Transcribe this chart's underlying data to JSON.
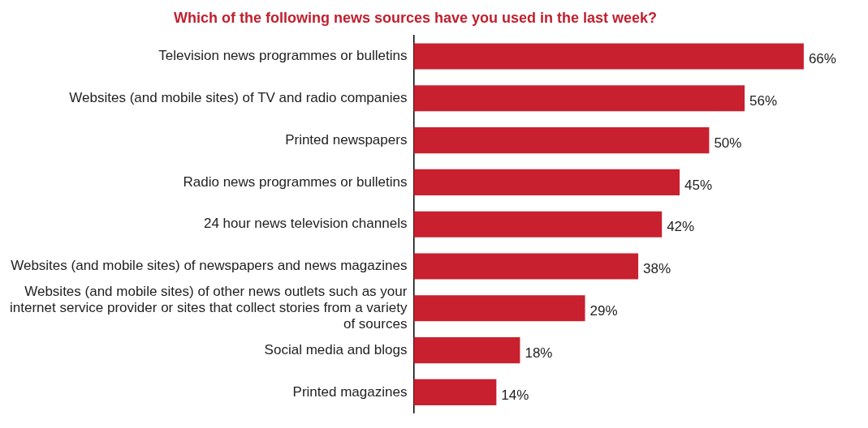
{
  "chart_data": {
    "type": "bar",
    "orientation": "horizontal",
    "title": "Which of the following news sources have you used in the last week?",
    "categories": [
      "Television news programmes or bulletins",
      "Websites (and mobile sites) of TV and radio companies",
      "Printed newspapers",
      "Radio news programmes or bulletins",
      "24 hour news television channels",
      "Websites (and mobile sites) of newspapers and news magazines",
      "Websites (and mobile sites) of other news outlets such as your internet service provider or sites that collect stories from a variety of sources",
      "Social media and blogs",
      "Printed magazines"
    ],
    "values": [
      66,
      56,
      50,
      45,
      42,
      38,
      29,
      18,
      14
    ],
    "value_labels": [
      "66%",
      "56%",
      "50%",
      "45%",
      "42%",
      "38%",
      "29%",
      "18%",
      "14%"
    ],
    "color": "#c8202f"
  }
}
